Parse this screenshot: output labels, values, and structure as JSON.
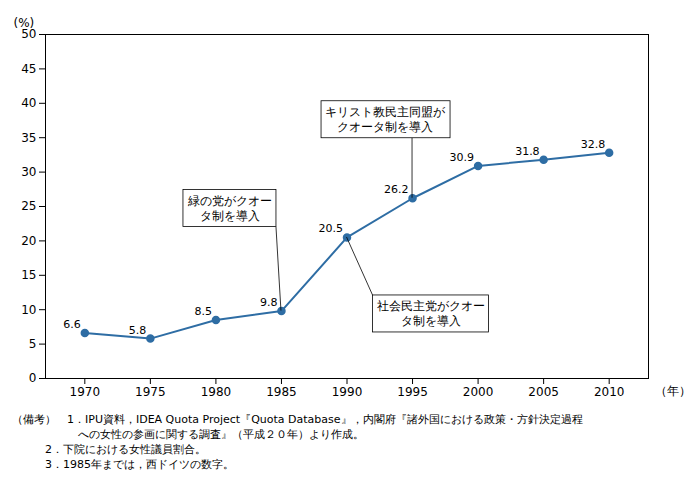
{
  "chart_data": {
    "type": "line",
    "x": [
      1970,
      1975,
      1980,
      1985,
      1990,
      1995,
      2000,
      2005,
      2010
    ],
    "values": [
      6.6,
      5.8,
      8.5,
      9.8,
      20.5,
      26.2,
      30.9,
      31.8,
      32.8
    ],
    "color": "#2e6da4",
    "marker": "circle",
    "xlim": [
      1967,
      2013
    ],
    "xticks": [
      1970,
      1975,
      1980,
      1985,
      1990,
      1995,
      2000,
      2005,
      2010
    ],
    "ylim": [
      0,
      50
    ],
    "yticks": [
      0,
      5,
      10,
      15,
      20,
      25,
      30,
      35,
      40,
      45,
      50
    ],
    "ylabel": "(%)",
    "xlabel": "（年）",
    "grid": false,
    "data_labels": true,
    "annotations": [
      {
        "text": "緑の党がクオー\nタ制を導入",
        "x": 1985,
        "y": 9.8
      },
      {
        "text": "キリスト教民主同盟が\nクオータ制を導入",
        "x": 1995,
        "y": 26.2
      },
      {
        "text": "社会民主党がクオー\nタ制を導入",
        "x": 1990,
        "y": 20.5
      }
    ],
    "caption": [
      "（備考）　1．IPU資料，IDEA Quota Project『Quota Database』，内閣府『諸外国における政策・方針決定過程",
      "　　　　　　への女性の参画に関する調査』（平成２０年）より作成。",
      "　　　2．下院における女性議員割合。",
      "　　　3．1985年までは，西ドイツの数字。"
    ]
  }
}
